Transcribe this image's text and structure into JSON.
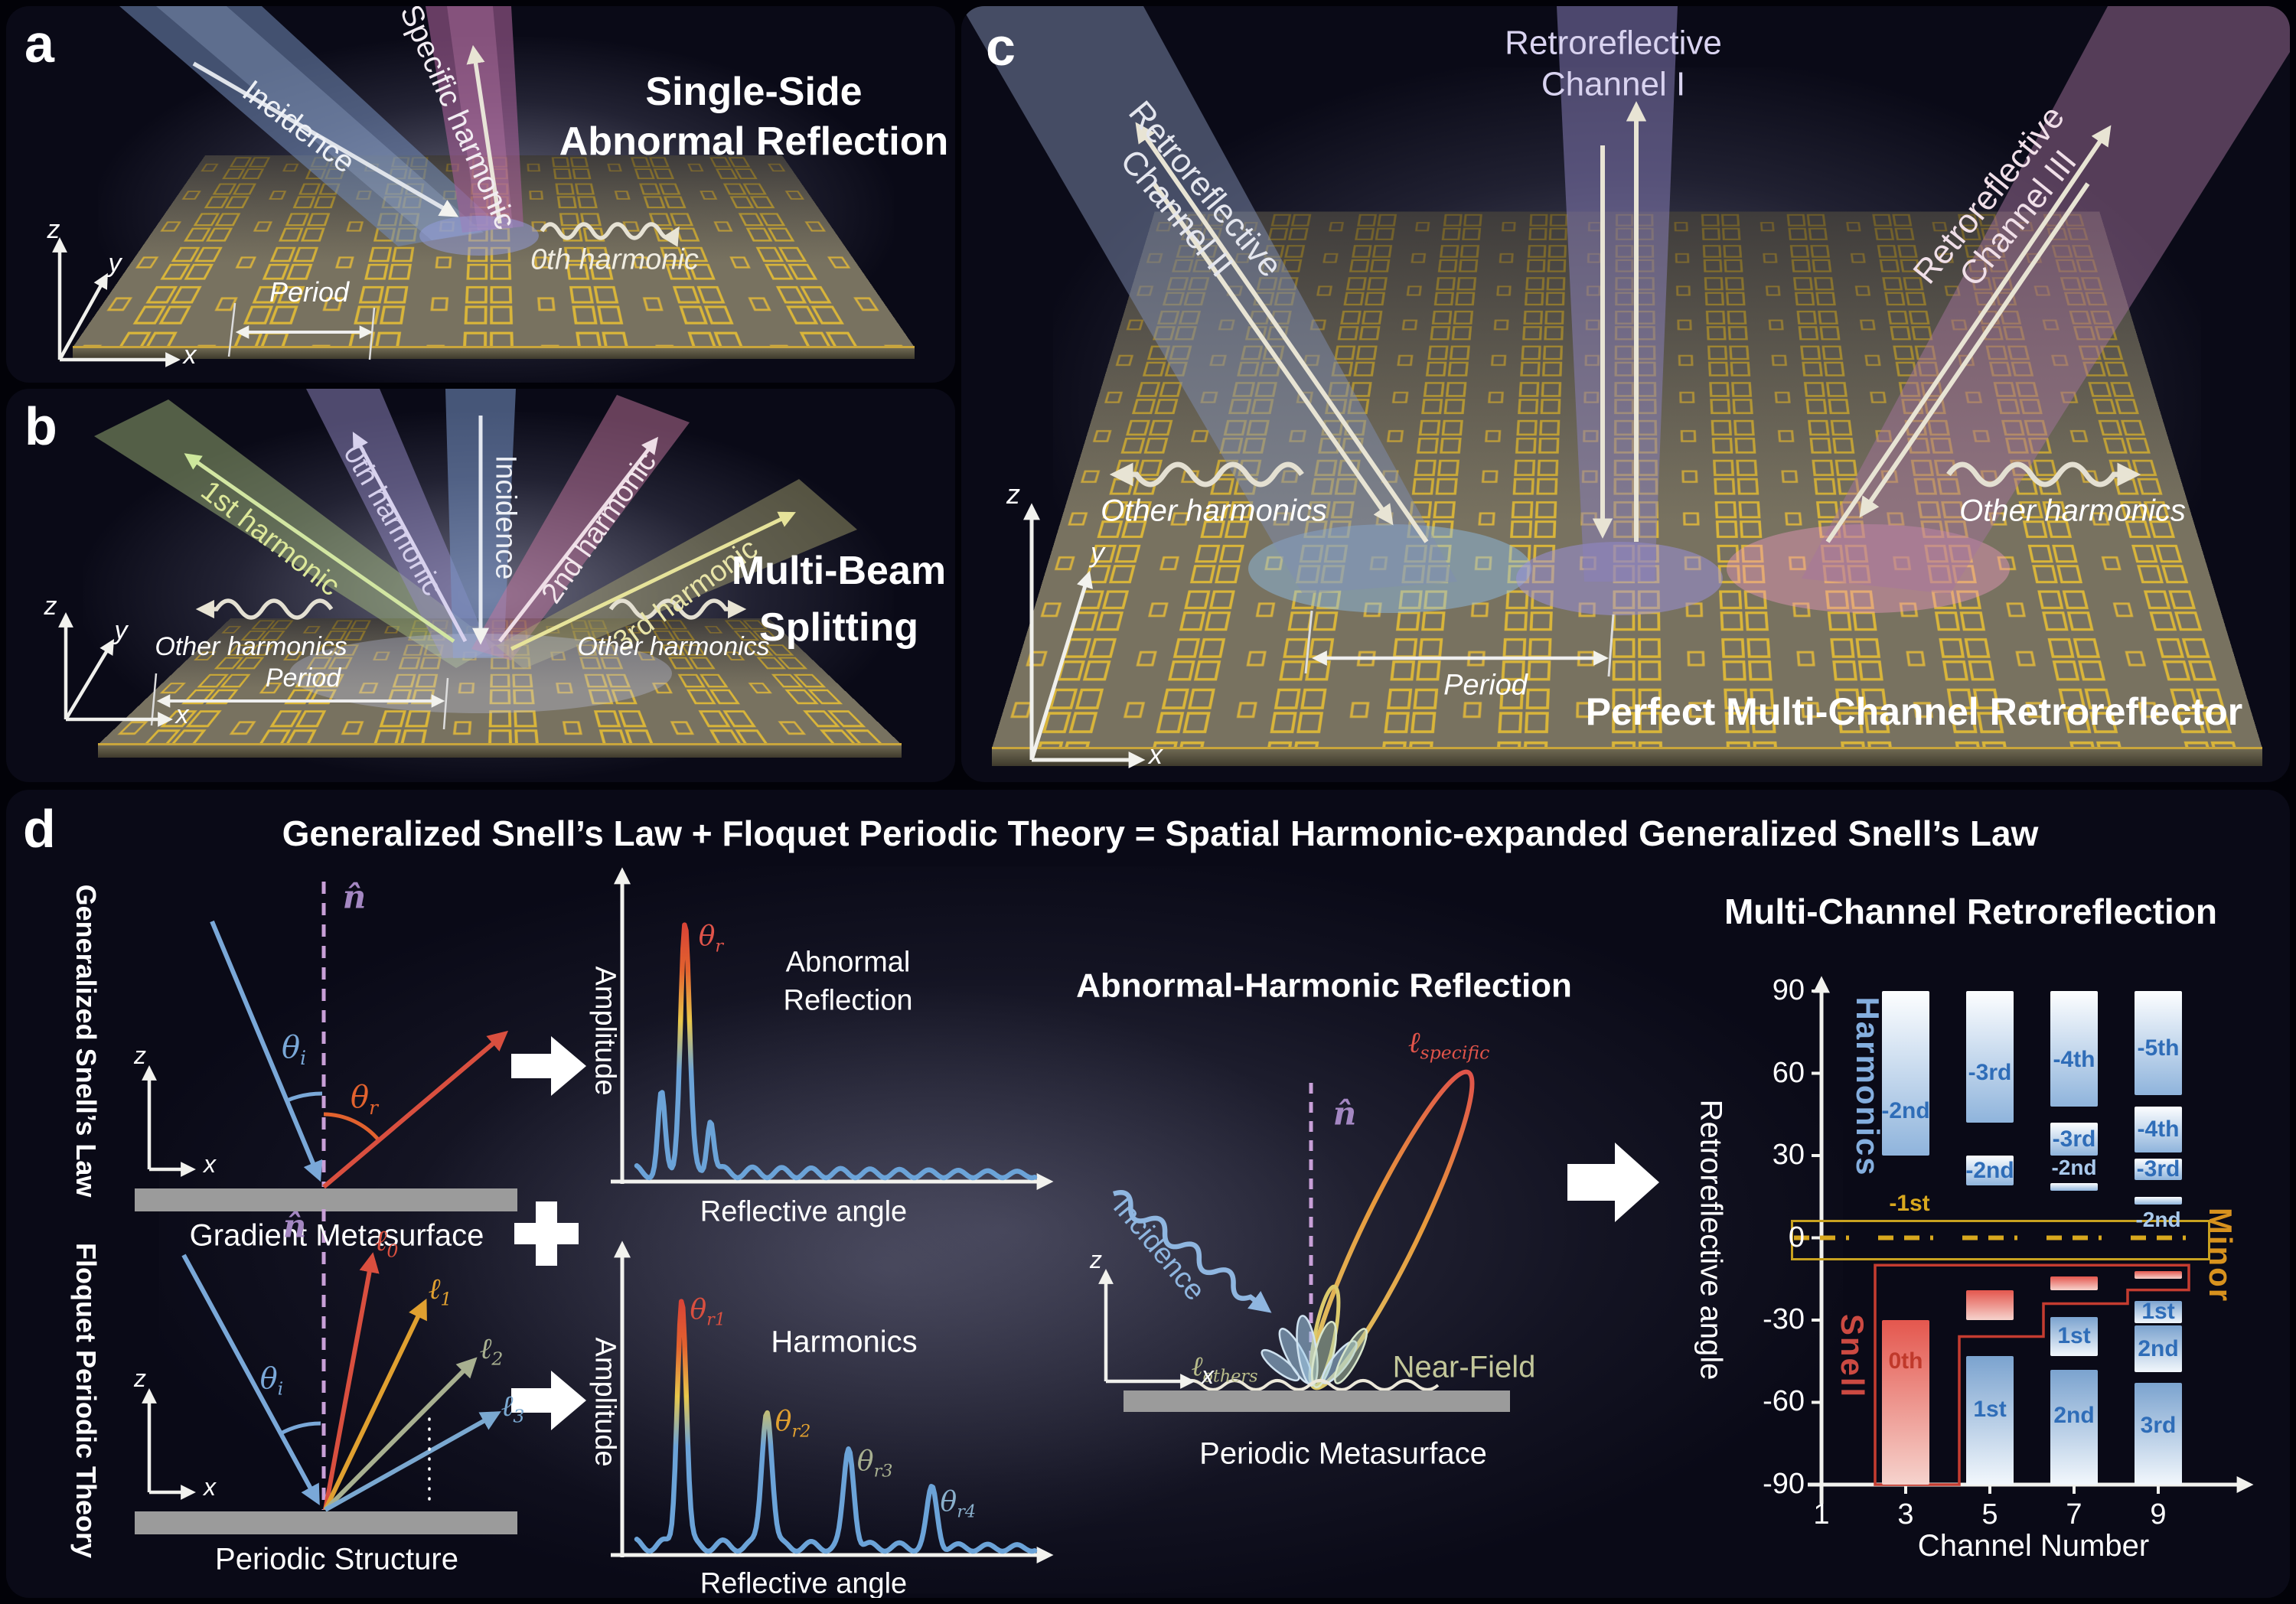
{
  "panels": {
    "a": {
      "letter": "a",
      "title_line1": "Single-Side",
      "title_line2": "Abnormal Reflection",
      "incidence": "Incidence",
      "specific_harmonic": "Specific harmonic",
      "zeroth_harmonic": "0th harmonic",
      "period": "Period",
      "axes": {
        "z": "z",
        "y": "y",
        "x": "x"
      }
    },
    "b": {
      "letter": "b",
      "title_line1": "Multi-Beam",
      "title_line2": "Splitting",
      "first_harmonic": "1st harmonic",
      "zeroth_harmonic": "0th harmonic",
      "incidence": "Incidence",
      "second_harmonic": "2nd harmonic",
      "third_harmonic": "3rd harmonic",
      "other_harmonics_left": "Other harmonics",
      "other_harmonics_right": "Other harmonics",
      "period": "Period",
      "axes": {
        "z": "z",
        "y": "y",
        "x": "x"
      }
    },
    "c": {
      "letter": "c",
      "title": "Perfect Multi-Channel Retroreflector",
      "channel1_line1": "Retroreflective",
      "channel1_line2": "Channel I",
      "channel2_line1": "Retroreflective",
      "channel2_line2": "Channel II",
      "channel3_line1": "Retroreflective",
      "channel3_line2": "Channel III",
      "other_harmonics_left": "Other harmonics",
      "other_harmonics_right": "Other harmonics",
      "period": "Period",
      "axes": {
        "z": "z",
        "y": "y",
        "x": "x"
      }
    },
    "d": {
      "letter": "d",
      "title": "Generalized Snell’s Law + Floquet Periodic Theory = Spatial Harmonic-expanded Generalized Snell’s Law",
      "sidebar_top": "Generalized Snell’s Law",
      "sidebar_bottom": "Floquet Periodic Theory",
      "gradient_diagram": {
        "normal": "n̂",
        "theta_i_base": "θ",
        "theta_i_sub": "i",
        "theta_r_base": "θ",
        "theta_r_sub": "r",
        "caption": "Gradient Metasurface",
        "axis_z": "z",
        "axis_x": "x"
      },
      "periodic_diagram": {
        "normal": "n̂",
        "theta_i_base": "θ",
        "theta_i_sub": "i",
        "l0_base": "ℓ",
        "l0_sub": "0",
        "l1_base": "ℓ",
        "l1_sub": "1",
        "l2_base": "ℓ",
        "l2_sub": "2",
        "l3_base": "ℓ",
        "l3_sub": "3",
        "caption": "Periodic Structure",
        "axis_z": "z",
        "axis_x": "x"
      },
      "middle": {
        "heading": "Abnormal-Harmonic Reflection",
        "incidence": "Incidence",
        "normal": "n̂",
        "l_specific_base": "ℓ",
        "l_specific_sub": "specific",
        "l_others_base": "ℓ",
        "l_others_sub": "others",
        "near_field": "Near-Field",
        "caption": "Periodic Metasurface",
        "axis_z": "z",
        "axis_x": "x"
      }
    }
  },
  "chart_data": [
    {
      "id": "abnormal_reflection",
      "type": "line",
      "title_line1": "Abnormal",
      "title_line2": "Reflection",
      "xlabel": "Reflective angle",
      "ylabel": "Amplitude",
      "peaks": [
        {
          "x": 0.062,
          "h": 0.3,
          "w": 0.012
        },
        {
          "x": 0.121,
          "h": 0.99,
          "w": 0.016,
          "label_base": "θ",
          "label_sub": "r",
          "label_color": "#e0544a"
        },
        {
          "x": 0.185,
          "h": 0.22,
          "w": 0.012
        }
      ],
      "note": "single dominant abnormal-reflection peak with small decaying sidelobes"
    },
    {
      "id": "harmonics",
      "type": "line",
      "title": "Harmonics",
      "xlabel": "Reflective angle",
      "ylabel": "Amplitude",
      "peaks": [
        {
          "x": 0.113,
          "h": 0.99,
          "w": 0.016,
          "label_base": "θ",
          "label_sub": "r1",
          "label_color": "#d94f3f"
        },
        {
          "x": 0.327,
          "h": 0.55,
          "w": 0.018,
          "label_base": "θ",
          "label_sub": "r2",
          "label_color": "#e0a030"
        },
        {
          "x": 0.533,
          "h": 0.39,
          "w": 0.018,
          "label_base": "θ",
          "label_sub": "r3",
          "label_color": "#a8b090"
        },
        {
          "x": 0.742,
          "h": 0.23,
          "w": 0.018,
          "label_base": "θ",
          "label_sub": "r4",
          "label_color": "#8ab0cc"
        }
      ],
      "note": "harmonic peaks of decreasing amplitude at increasing reflective angles"
    },
    {
      "id": "multi_channel_retroreflection",
      "type": "bar",
      "title": "Multi-Channel Retroreflection",
      "xlabel": "Channel Number",
      "ylabel": "Retroreflective angle",
      "ylim": [
        -90,
        90
      ],
      "yticks": [
        "90",
        "60",
        "30",
        "0",
        "-30",
        "-60",
        "-90"
      ],
      "ytick_values": [
        90,
        60,
        30,
        0,
        -30,
        -60,
        -90
      ],
      "xticks": [
        "1",
        "3",
        "5",
        "7",
        "9"
      ],
      "xtick_values": [
        1,
        3,
        5,
        7,
        9
      ],
      "region_labels": {
        "harmonics": "Harmonics",
        "snell": "Snell",
        "minor": "Minor"
      },
      "zero_label": "-1st",
      "minor_box_deg": [
        6.5,
        -6.5
      ],
      "snell_outline": {
        "top_deg": -10,
        "left_channel": 3,
        "steps": [
          {
            "channel": 9,
            "deg": -19
          },
          {
            "channel": 7,
            "deg": -24
          },
          {
            "channel": 5,
            "deg": -36
          }
        ]
      },
      "groups": [
        {
          "channel": 1,
          "bars": []
        },
        {
          "channel": 3,
          "bars": [
            {
              "label": "-2nd",
              "kind": "harmonic",
              "from": 30,
              "to": 90,
              "label_pos": 0.73
            },
            {
              "label": "0th",
              "kind": "snell",
              "from": -90,
              "to": -30,
              "label_pos": 0.25
            }
          ]
        },
        {
          "channel": 5,
          "bars": [
            {
              "label": "-3rd",
              "kind": "harmonic",
              "from": 42,
              "to": 90,
              "label_pos": 0.62
            },
            {
              "label": "-2nd",
              "kind": "harmonic",
              "from": 19,
              "to": 30,
              "label_pos": 0.5
            },
            {
              "label": "",
              "kind": "snell",
              "from": -30,
              "to": -19
            },
            {
              "label": "1st",
              "kind": "retro",
              "from": -90,
              "to": -43,
              "label_pos": 0.42
            }
          ]
        },
        {
          "channel": 7,
          "bars": [
            {
              "label": "-4th",
              "kind": "harmonic",
              "from": 48,
              "to": 90,
              "label_pos": 0.6
            },
            {
              "label": "-3rd",
              "kind": "harmonic",
              "from": 30,
              "to": 42,
              "label_pos": 0.5
            },
            {
              "label": "-2nd",
              "kind": "harmonic",
              "from": 17,
              "to": 20,
              "label_outside": "above"
            },
            {
              "label": "",
              "kind": "snell",
              "from": -19,
              "to": -14
            },
            {
              "label": "1st",
              "kind": "retro",
              "from": -43,
              "to": -29,
              "label_pos": 0.5
            },
            {
              "label": "2nd",
              "kind": "retro",
              "from": -90,
              "to": -48,
              "label_pos": 0.4
            }
          ]
        },
        {
          "channel": 9,
          "bars": [
            {
              "label": "-5th",
              "kind": "harmonic",
              "from": 52,
              "to": 90,
              "label_pos": 0.55
            },
            {
              "label": "-4th",
              "kind": "harmonic",
              "from": 31,
              "to": 48,
              "label_pos": 0.5
            },
            {
              "label": "-3rd",
              "kind": "harmonic",
              "from": 21,
              "to": 29,
              "label_pos": 0.5
            },
            {
              "label": "-2nd",
              "kind": "harmonic",
              "from": 12,
              "to": 15,
              "label_outside": "below"
            },
            {
              "label": "",
              "kind": "snell",
              "from": -15,
              "to": -12
            },
            {
              "label": "1st",
              "kind": "retro",
              "from": -31,
              "to": -23,
              "label_pos": 0.5
            },
            {
              "label": "2nd",
              "kind": "retro",
              "from": -49,
              "to": -32,
              "label_pos": 0.5
            },
            {
              "label": "3rd",
              "kind": "retro",
              "from": -90,
              "to": -53,
              "label_pos": 0.42
            }
          ]
        }
      ]
    }
  ],
  "colors": {
    "gold": "#d7b13e",
    "snell_red": "#c43c30",
    "minor_orange": "#d8921e",
    "harmonics_blue": "#84aede",
    "bar_label_blue": "#2f6db8",
    "zero_dash_yellow": "#d8a81e"
  }
}
